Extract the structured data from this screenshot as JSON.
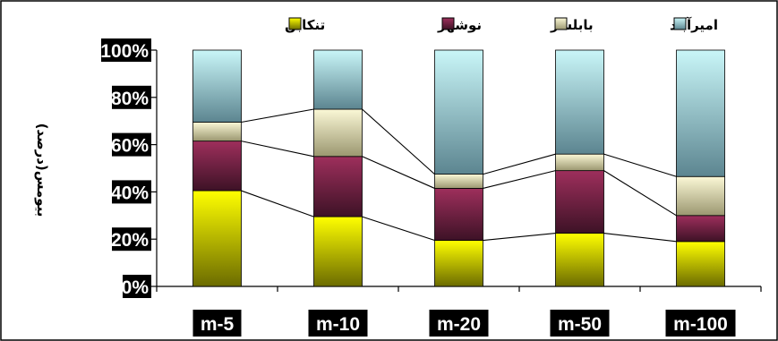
{
  "chart_data": {
    "type": "bar",
    "stacked": "percent",
    "categories": [
      "m-5",
      "m-10",
      "m-20",
      "m-50",
      "m-100"
    ],
    "series": [
      {
        "name": "تنکابن",
        "values": [
          40.5,
          29.5,
          19.5,
          22.5,
          19
        ]
      },
      {
        "name": "نوشهر",
        "values": [
          21,
          25.5,
          22,
          26.5,
          11
        ]
      },
      {
        "name": "بابلسر",
        "values": [
          8,
          20,
          6,
          7,
          16.5
        ]
      },
      {
        "name": "امیرآباد",
        "values": [
          30.5,
          25,
          52.5,
          44,
          53.5
        ]
      }
    ],
    "ylabel": "بیومس(درصد)",
    "xlabel": "",
    "title": "",
    "ylim": [
      0,
      100
    ],
    "yticks": [
      "0%",
      "20%",
      "40%",
      "60%",
      "80%",
      "100%"
    ],
    "legend_position": "top",
    "grid": false,
    "colors": {
      "تنکابن": [
        "#ffff00",
        "#6b6b00"
      ],
      "نوشهر": [
        "#9e2f5c",
        "#3d1226"
      ],
      "بابلسر": [
        "#fbf8d6",
        "#9b9770"
      ],
      "امیرآباد": [
        "#c9f6f8",
        "#5c8590"
      ]
    }
  }
}
